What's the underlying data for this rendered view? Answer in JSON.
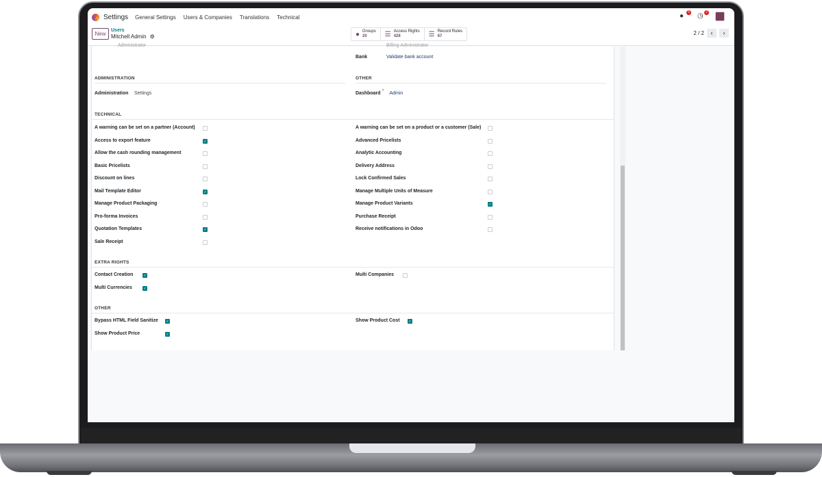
{
  "navbar": {
    "app": "Settings",
    "menus": [
      "General Settings",
      "Users & Companies",
      "Translations",
      "Technical"
    ],
    "messages_badge": "5",
    "activities_badge": "2"
  },
  "control": {
    "new_label": "New",
    "breadcrumb_parent": "Users",
    "breadcrumb_current": "Mitchell Admin",
    "stats": [
      {
        "label": "Groups",
        "value": "20",
        "icon": "users-icon"
      },
      {
        "label": "Access Rights",
        "value": "428",
        "icon": "list-icon"
      },
      {
        "label": "Record Rules",
        "value": "67",
        "icon": "list-icon"
      }
    ],
    "pager": "2 / 2"
  },
  "clipped": {
    "left_value": "Administrator",
    "right_value": "Billing Administrator"
  },
  "top": {
    "bank_label": "Bank",
    "bank_value": "Validate bank account"
  },
  "administration": {
    "heading": "ADMINISTRATION",
    "label": "Administration",
    "value": "Settings"
  },
  "other_top": {
    "heading": "OTHER",
    "label": "Dashboard",
    "help": "?",
    "value": "Admin"
  },
  "technical": {
    "heading": "TECHNICAL",
    "left": [
      {
        "label": "A warning can be set on a partner (Account)",
        "checked": false
      },
      {
        "label": "Access to export feature",
        "checked": true
      },
      {
        "label": "Allow the cash rounding management",
        "checked": false
      },
      {
        "label": "Basic Pricelists",
        "checked": false
      },
      {
        "label": "Discount on lines",
        "checked": false
      },
      {
        "label": "Mail Template Editor",
        "checked": true
      },
      {
        "label": "Manage Product Packaging",
        "checked": false
      },
      {
        "label": "Pro-forma Invoices",
        "checked": false
      },
      {
        "label": "Quotation Templates",
        "checked": true
      },
      {
        "label": "Sale Receipt",
        "checked": false
      }
    ],
    "right": [
      {
        "label": "A warning can be set on a product or a customer (Sale)",
        "checked": false
      },
      {
        "label": "Advanced Pricelists",
        "checked": false
      },
      {
        "label": "Analytic Accounting",
        "checked": false
      },
      {
        "label": "Delivery Address",
        "checked": false
      },
      {
        "label": "Lock Confirmed Sales",
        "checked": false
      },
      {
        "label": "Manage Multiple Units of Measure",
        "checked": false
      },
      {
        "label": "Manage Product Variants",
        "checked": true
      },
      {
        "label": "Purchase Receipt",
        "checked": false
      },
      {
        "label": "Receive notifications in Odoo",
        "checked": false
      }
    ]
  },
  "extra_rights": {
    "heading": "EXTRA RIGHTS",
    "left": [
      {
        "label": "Contact Creation",
        "checked": true
      },
      {
        "label": "Multi Currencies",
        "checked": true
      }
    ],
    "right": [
      {
        "label": "Multi Companies",
        "checked": false
      }
    ]
  },
  "other": {
    "heading": "OTHER",
    "left": [
      {
        "label": "Bypass HTML Field Sanitize",
        "checked": true
      },
      {
        "label": "Show Product Price",
        "checked": true
      }
    ],
    "right": [
      {
        "label": "Show Product Cost",
        "checked": true
      }
    ]
  },
  "colors": {
    "brand": "#714b67",
    "accent": "#017e84"
  }
}
